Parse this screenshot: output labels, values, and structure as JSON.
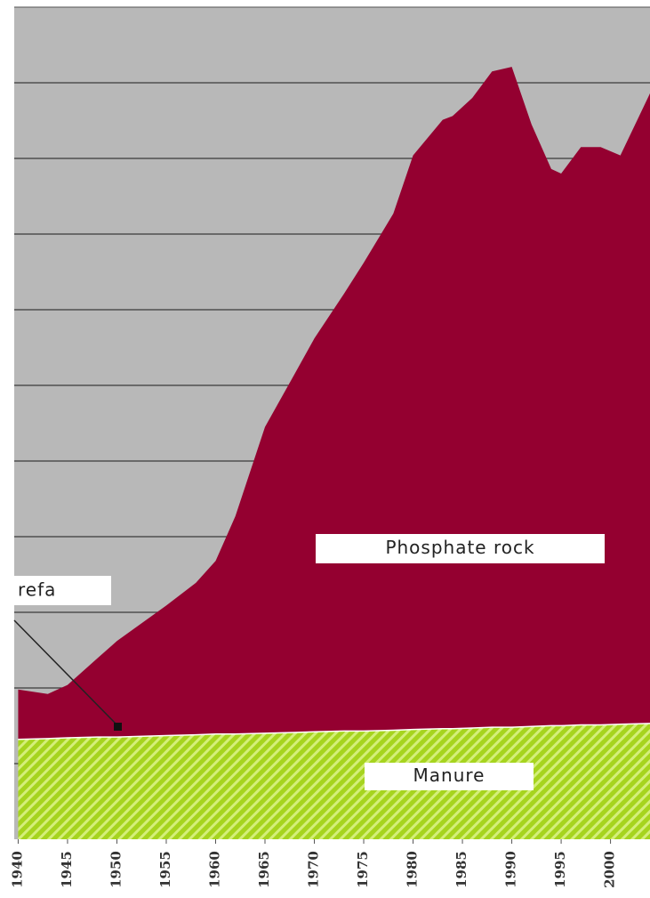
{
  "chart_data": {
    "type": "area",
    "stacked": true,
    "x": [
      1940,
      1943,
      1945,
      1948,
      1950,
      1955,
      1958,
      1960,
      1962,
      1965,
      1968,
      1970,
      1973,
      1975,
      1978,
      1980,
      1983,
      1984,
      1986,
      1988,
      1990,
      1992,
      1994,
      1995,
      1997,
      1999,
      2001,
      2004
    ],
    "series": [
      {
        "name": "Manure",
        "color": "#a6d41e",
        "values": [
          1.33,
          1.34,
          1.35,
          1.36,
          1.36,
          1.38,
          1.39,
          1.4,
          1.4,
          1.41,
          1.42,
          1.43,
          1.44,
          1.44,
          1.45,
          1.46,
          1.47,
          1.47,
          1.48,
          1.49,
          1.49,
          1.5,
          1.51,
          1.51,
          1.52,
          1.52,
          1.53,
          1.54
        ]
      },
      {
        "name": "Phosphate rock",
        "color": "#940030",
        "values": [
          0.65,
          0.58,
          0.69,
          1.03,
          1.26,
          1.71,
          2.0,
          2.28,
          2.87,
          4.04,
          4.73,
          5.19,
          5.77,
          6.18,
          6.82,
          7.58,
          8.04,
          8.09,
          8.32,
          8.66,
          8.72,
          7.95,
          7.35,
          7.29,
          7.63,
          7.63,
          7.51,
          8.32
        ]
      }
    ],
    "annotation": "refa",
    "xlim": [
      1939.6,
      2004
    ],
    "xticks": [
      1940,
      1945,
      1950,
      1955,
      1960,
      1965,
      1970,
      1975,
      1980,
      1985,
      1990,
      1995,
      2000
    ],
    "ylim": [
      0,
      11
    ],
    "yticks": [
      1,
      2,
      3,
      4,
      5,
      6,
      7,
      8,
      9,
      10
    ],
    "grid": true
  }
}
